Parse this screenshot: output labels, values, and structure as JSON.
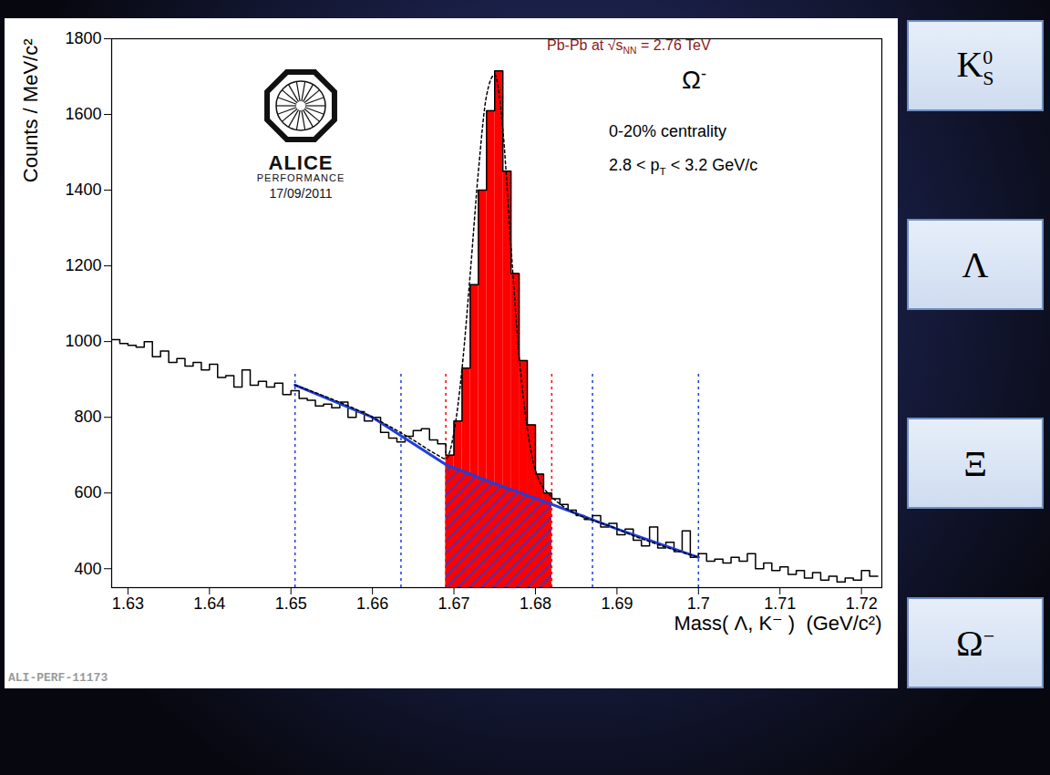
{
  "chart_data": {
    "type": "histogram",
    "x_label": "Mass( Λ, K⁻ )  (GeV/c²)",
    "y_label": "Counts / MeV/c²",
    "bins": [
      1.628,
      1.629,
      1.63,
      1.631,
      1.632,
      1.633,
      1.634,
      1.635,
      1.636,
      1.637,
      1.638,
      1.639,
      1.64,
      1.641,
      1.642,
      1.643,
      1.644,
      1.645,
      1.646,
      1.647,
      1.648,
      1.649,
      1.65,
      1.651,
      1.652,
      1.653,
      1.654,
      1.655,
      1.656,
      1.657,
      1.658,
      1.659,
      1.66,
      1.661,
      1.662,
      1.663,
      1.664,
      1.665,
      1.666,
      1.667,
      1.668,
      1.669,
      1.67,
      1.671,
      1.672,
      1.673,
      1.674,
      1.675,
      1.676,
      1.677,
      1.678,
      1.679,
      1.68,
      1.681,
      1.682,
      1.683,
      1.684,
      1.685,
      1.686,
      1.687,
      1.688,
      1.689,
      1.69,
      1.691,
      1.692,
      1.693,
      1.694,
      1.695,
      1.696,
      1.697,
      1.698,
      1.699,
      1.7,
      1.701,
      1.702,
      1.703,
      1.704,
      1.705,
      1.706,
      1.707,
      1.708,
      1.709,
      1.71,
      1.711,
      1.712,
      1.713,
      1.714,
      1.715,
      1.716,
      1.717,
      1.718,
      1.719,
      1.72,
      1.721,
      1.722
    ],
    "values": [
      1005,
      995,
      990,
      985,
      1000,
      960,
      975,
      945,
      955,
      935,
      945,
      925,
      940,
      905,
      910,
      880,
      925,
      885,
      895,
      880,
      890,
      860,
      870,
      850,
      845,
      830,
      835,
      825,
      840,
      800,
      815,
      790,
      800,
      760,
      745,
      735,
      750,
      765,
      770,
      740,
      730,
      700,
      790,
      930,
      1150,
      1400,
      1610,
      1715,
      1450,
      1180,
      950,
      780,
      650,
      600,
      585,
      570,
      555,
      540,
      530,
      540,
      510,
      520,
      490,
      505,
      475,
      460,
      510,
      455,
      470,
      445,
      500,
      430,
      440,
      420,
      425,
      415,
      430,
      420,
      440,
      400,
      415,
      395,
      405,
      385,
      395,
      375,
      390,
      370,
      380,
      365,
      375,
      370,
      395,
      380
    ],
    "color": "#000000",
    "xlim": [
      1.628,
      1.7225
    ],
    "xticks": [
      1.63,
      1.64,
      1.65,
      1.66,
      1.67,
      1.68,
      1.69,
      1.7,
      1.71,
      1.72
    ],
    "ylim": [
      350,
      1800
    ],
    "yticks": [
      400,
      600,
      800,
      1000,
      1200,
      1400,
      1600,
      1800
    ],
    "signal_region": [
      1.669,
      1.682
    ],
    "signal_color": "#ff0000",
    "sidebands": [
      [
        1.6505,
        1.6635
      ],
      [
        1.687,
        1.7
      ]
    ],
    "region_line_top": 915,
    "fits": {
      "background": {
        "x": [
          1.6505,
          1.66,
          1.669,
          1.675,
          1.682,
          1.69,
          1.7
        ],
        "y": [
          885,
          800,
          675,
          625,
          570,
          505,
          430
        ],
        "color": "#1f3fdc",
        "line_style": "solid"
      },
      "total": {
        "x": [
          1.6505,
          1.66,
          1.665,
          1.668,
          1.669,
          1.67,
          1.671,
          1.672,
          1.673,
          1.674,
          1.675,
          1.676,
          1.677,
          1.678,
          1.679,
          1.68,
          1.682,
          1.69,
          1.7
        ],
        "y": [
          885,
          800,
          740,
          700,
          690,
          760,
          930,
          1180,
          1450,
          1650,
          1705,
          1560,
          1250,
          960,
          770,
          660,
          590,
          505,
          430
        ],
        "color": "#000000",
        "line_style": "dotted"
      }
    },
    "annotations": [
      {
        "text": [
          "Pb-Pb at √s",
          {
            "sub": "NN"
          },
          " = 2.76 TeV"
        ],
        "color": "#8b1a1a"
      },
      {
        "text": [
          "Ω",
          {
            "sup": "-"
          }
        ],
        "color": "#000000"
      },
      {
        "text": [
          "0-20% centrality"
        ],
        "color": "#000000"
      },
      {
        "text": [
          "2.8 < p",
          {
            "sub": "T"
          },
          " < 3.2 GeV/c"
        ],
        "color": "#000000"
      }
    ],
    "logo": {
      "name": "ALICE",
      "subtitle": "PERFORMANCE",
      "date": "17/09/2011"
    },
    "figure_id": "ALI-PERF-11173"
  },
  "slide": {
    "side_labels": [
      {
        "text": [
          "K",
          {
            "sup": "0",
            "sub": "S"
          }
        ]
      },
      {
        "text": [
          "Λ"
        ]
      },
      {
        "text": [
          "Ξ"
        ]
      },
      {
        "text": [
          "Ω",
          {
            "sup": "−"
          }
        ]
      }
    ]
  }
}
